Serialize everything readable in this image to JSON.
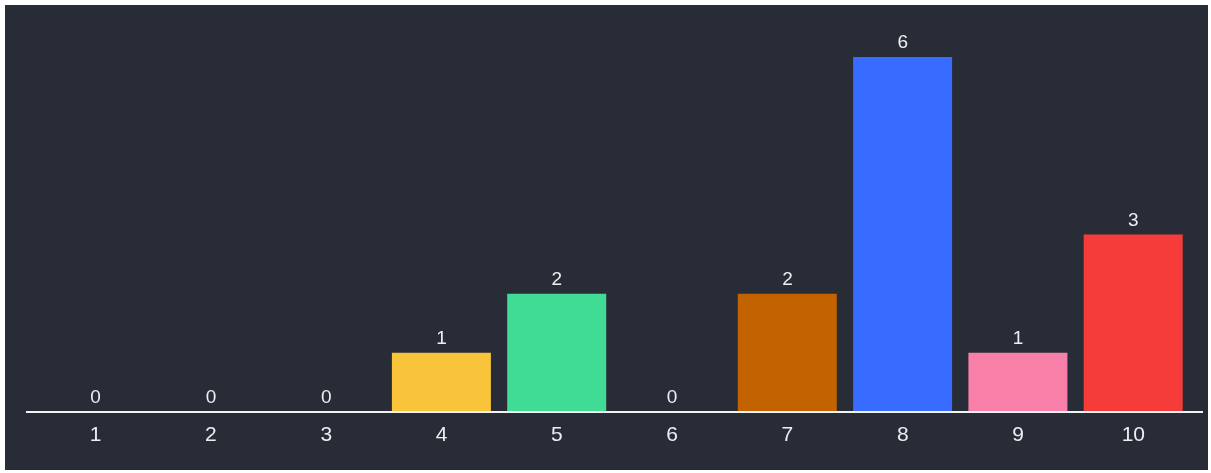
{
  "chart_data": {
    "type": "bar",
    "categories": [
      "1",
      "2",
      "3",
      "4",
      "5",
      "6",
      "7",
      "8",
      "9",
      "10"
    ],
    "values": [
      0,
      0,
      0,
      1,
      2,
      0,
      2,
      6,
      1,
      3
    ],
    "colors": [
      null,
      null,
      null,
      "#f8c43a",
      "#40dc96",
      null,
      "#c26200",
      "#386bff",
      "#f77fa8",
      "#f53c3a"
    ],
    "data_labels": true
  }
}
